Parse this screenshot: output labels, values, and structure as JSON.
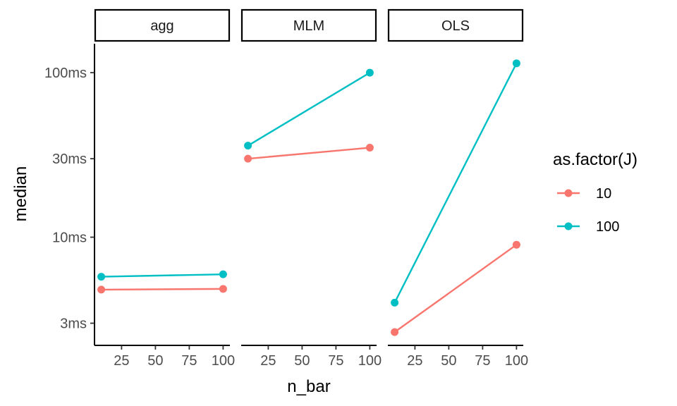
{
  "chart_data": {
    "type": "line",
    "facet_by": "method",
    "panels": [
      "agg",
      "MLM",
      "OLS"
    ],
    "x_label": "n_bar",
    "y_label": "median",
    "x_ticks": [
      25,
      50,
      75,
      100
    ],
    "x_range": [
      5,
      105
    ],
    "y_scale": "log10",
    "y_ticks": [
      {
        "value": 3,
        "label": "3ms"
      },
      {
        "value": 10,
        "label": "10ms"
      },
      {
        "value": 30,
        "label": "30ms"
      },
      {
        "value": 100,
        "label": "100ms"
      }
    ],
    "y_range_ms": [
      2.2,
      150
    ],
    "grid": false,
    "legend": {
      "title": "as.factor(J)",
      "position": "right",
      "entries": [
        {
          "label": "10",
          "color": "#F8766D"
        },
        {
          "label": "100",
          "color": "#00BFC4"
        }
      ]
    },
    "series": [
      {
        "name": "10",
        "color": "#F8766D",
        "panel": "agg",
        "x": [
          10,
          100
        ],
        "y_ms": [
          4.8,
          4.85
        ]
      },
      {
        "name": "100",
        "color": "#00BFC4",
        "panel": "agg",
        "x": [
          10,
          100
        ],
        "y_ms": [
          5.75,
          5.95
        ]
      },
      {
        "name": "10",
        "color": "#F8766D",
        "panel": "MLM",
        "x": [
          10,
          100
        ],
        "y_ms": [
          30,
          35
        ]
      },
      {
        "name": "100",
        "color": "#00BFC4",
        "panel": "MLM",
        "x": [
          10,
          100
        ],
        "y_ms": [
          36,
          100
        ]
      },
      {
        "name": "10",
        "color": "#F8766D",
        "panel": "OLS",
        "x": [
          10,
          100
        ],
        "y_ms": [
          2.65,
          9.0
        ]
      },
      {
        "name": "100",
        "color": "#00BFC4",
        "panel": "OLS",
        "x": [
          10,
          100
        ],
        "y_ms": [
          4.0,
          114
        ]
      }
    ]
  }
}
